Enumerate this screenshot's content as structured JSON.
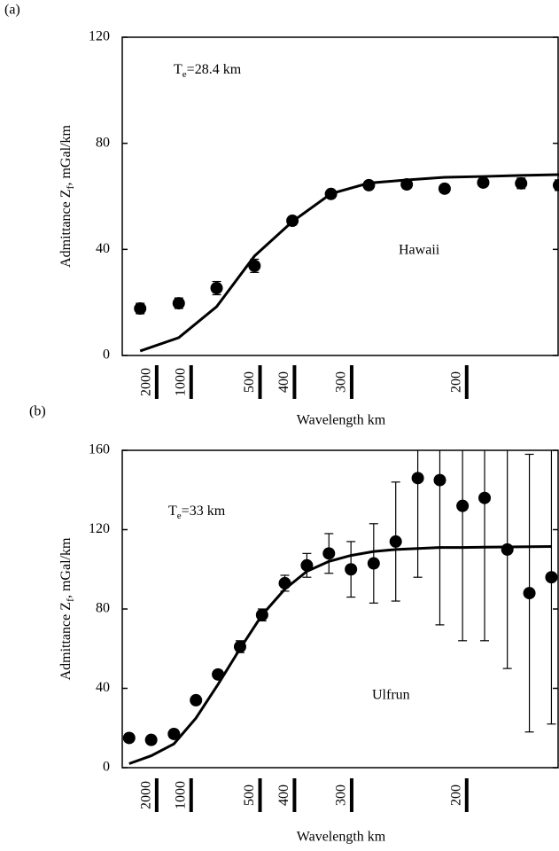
{
  "chart_data": [
    {
      "type": "scatter",
      "panel_label": "(a)",
      "ylabel_main": "Admittance   Z",
      "ylabel_sub": "f",
      "ylabel_unit": ",   mGal/km",
      "xlabel": "Wavelength   km",
      "annotation_main": "T",
      "annotation_sub": "e",
      "annotation_rest": "=28.4  km",
      "region_label": "Hawaii",
      "x": [
        0.00026,
        0.00082,
        0.00137,
        0.00192,
        0.00247,
        0.00303,
        0.00358,
        0.00413,
        0.00468,
        0.00524,
        0.00579,
        0.00634
      ],
      "values": [
        17.7,
        19.7,
        25.4,
        33.8,
        50.8,
        60.9,
        64.2,
        64.5,
        62.9,
        65.2,
        64.9,
        64.2
      ],
      "errors": [
        2,
        2,
        2.5,
        2.5,
        1.5,
        1.5,
        1.5,
        1.5,
        1.5,
        1.5,
        2,
        2
      ],
      "line_values": [
        1.7,
        6.7,
        18.4,
        37.5,
        50.5,
        61,
        65,
        66.2,
        67.2,
        67.5,
        67.9,
        68.2
      ],
      "color": "#000000",
      "xlim": [
        0,
        0.00634
      ],
      "ylim": [
        0,
        120
      ],
      "yticks": [
        0,
        40,
        80,
        120
      ],
      "xticks": [
        {
          "value": 0.0005,
          "label": "2000"
        },
        {
          "value": 0.001,
          "label": "1000"
        },
        {
          "value": 0.002,
          "label": "500"
        },
        {
          "value": 0.0025,
          "label": "400"
        },
        {
          "value": 0.00333,
          "label": "300"
        },
        {
          "value": 0.005,
          "label": "200"
        }
      ]
    },
    {
      "type": "scatter",
      "panel_label": "(b)",
      "ylabel_main": "Admittance   Z",
      "ylabel_sub": "f",
      "ylabel_unit": ",   mGal/km",
      "xlabel": "Wavelength   km",
      "annotation_main": "T",
      "annotation_sub": "e",
      "annotation_rest": "=33  km",
      "region_label": "Ulfrun",
      "x": [
        0.0001,
        0.00042,
        0.00075,
        0.00107,
        0.00139,
        0.00171,
        0.00203,
        0.00236,
        0.00268,
        0.003,
        0.00332,
        0.00365,
        0.00397,
        0.00429,
        0.00461,
        0.00494,
        0.00526,
        0.00559,
        0.00591,
        0.00623
      ],
      "values": [
        15,
        14,
        17,
        34,
        47,
        61,
        77,
        93,
        102,
        108,
        100,
        103,
        114,
        146,
        145,
        132,
        136,
        110,
        88,
        96
      ],
      "errors": [
        2,
        2,
        2,
        2,
        2,
        3,
        3,
        4,
        6,
        10,
        14,
        20,
        30,
        50,
        73,
        68,
        72,
        60,
        70,
        74
      ],
      "line_values": [
        2,
        6,
        12,
        25,
        42,
        60,
        77,
        90,
        99,
        104,
        107,
        109,
        110,
        110.5,
        111,
        111,
        111.2,
        111.3,
        111.4,
        111.5
      ],
      "color": "#000000",
      "xlim": [
        0,
        0.00634
      ],
      "ylim": [
        0,
        160
      ],
      "yticks": [
        0,
        40,
        80,
        120,
        160
      ],
      "xticks": [
        {
          "value": 0.0005,
          "label": "2000"
        },
        {
          "value": 0.001,
          "label": "1000"
        },
        {
          "value": 0.002,
          "label": "500"
        },
        {
          "value": 0.0025,
          "label": "400"
        },
        {
          "value": 0.00333,
          "label": "300"
        },
        {
          "value": 0.005,
          "label": "200"
        }
      ]
    }
  ]
}
